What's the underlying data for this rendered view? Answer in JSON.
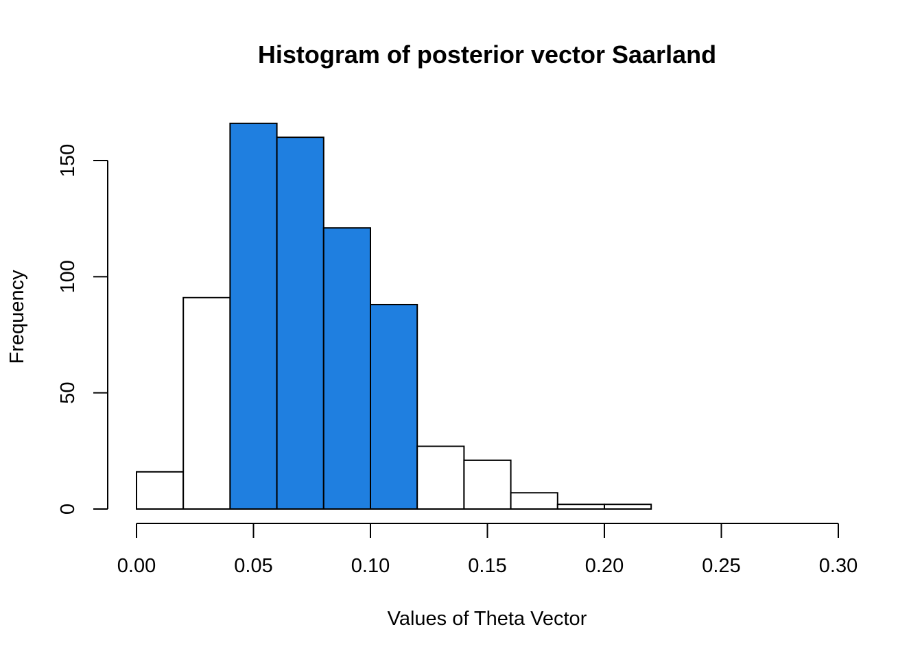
{
  "chart_data": {
    "type": "bar",
    "title": "Histogram of posterior vector Saarland",
    "xlabel": "Values of Theta Vector",
    "ylabel": "Frequency",
    "xlim": [
      0.0,
      0.3
    ],
    "ylim": [
      0,
      170
    ],
    "x_ticks": [
      "0.00",
      "0.05",
      "0.10",
      "0.15",
      "0.20",
      "0.25",
      "0.30"
    ],
    "y_ticks": [
      "0",
      "50",
      "100",
      "150"
    ],
    "grid": false,
    "bins": [
      {
        "start": 0.0,
        "end": 0.02,
        "count": 16,
        "highlighted": false
      },
      {
        "start": 0.02,
        "end": 0.04,
        "count": 91,
        "highlighted": false
      },
      {
        "start": 0.04,
        "end": 0.06,
        "count": 166,
        "highlighted": true
      },
      {
        "start": 0.06,
        "end": 0.08,
        "count": 160,
        "highlighted": true
      },
      {
        "start": 0.08,
        "end": 0.1,
        "count": 121,
        "highlighted": true
      },
      {
        "start": 0.1,
        "end": 0.12,
        "count": 88,
        "highlighted": true
      },
      {
        "start": 0.12,
        "end": 0.14,
        "count": 27,
        "highlighted": false
      },
      {
        "start": 0.14,
        "end": 0.16,
        "count": 21,
        "highlighted": false
      },
      {
        "start": 0.16,
        "end": 0.18,
        "count": 7,
        "highlighted": false
      },
      {
        "start": 0.18,
        "end": 0.2,
        "count": 2,
        "highlighted": false
      },
      {
        "start": 0.2,
        "end": 0.22,
        "count": 2,
        "highlighted": false
      }
    ],
    "colors": {
      "highlight_fill": "#1f7fe0",
      "default_fill": "#ffffff",
      "outline": "#000000"
    }
  }
}
